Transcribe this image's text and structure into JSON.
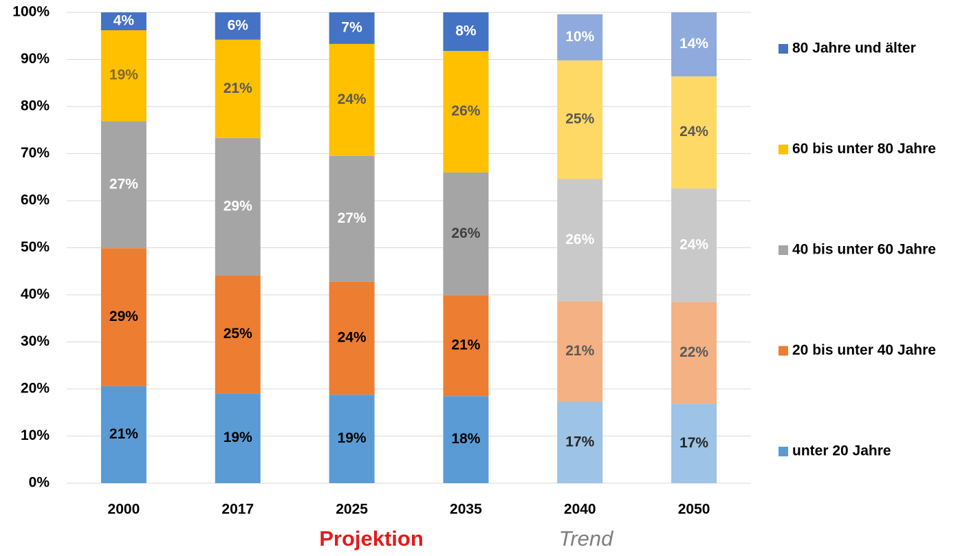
{
  "chart_data": {
    "type": "stacked_bar",
    "categories": [
      "2000",
      "2017",
      "2025",
      "2035",
      "2040",
      "2050"
    ],
    "series": [
      {
        "name": "unter 20 Jahre",
        "color": "#5b9bd5",
        "point_colors": [
          "#5b9bd5",
          "#5b9bd5",
          "#5b9bd5",
          "#5b9bd5",
          "#9dc3e6",
          "#9dc3e6"
        ],
        "label_colors": [
          "#000000",
          "#000000",
          "#000000",
          "#000000",
          "#262626",
          "#262626"
        ],
        "values": [
          20.6,
          19.1,
          18.8,
          18.5,
          17.3,
          16.8
        ],
        "value_labels": [
          "21%",
          "19%",
          "19%",
          "18%",
          "17%",
          "17%"
        ]
      },
      {
        "name": "20 bis unter 40 Jahre",
        "color": "#ed7d31",
        "point_colors": [
          "#ed7d31",
          "#ed7d31",
          "#ed7d31",
          "#ed7d31",
          "#f4b183",
          "#f4b183"
        ],
        "label_colors": [
          "#000000",
          "#000000",
          "#000000",
          "#000000",
          "#595959",
          "#595959"
        ],
        "values": [
          29.3,
          25.0,
          24.0,
          21.4,
          21.3,
          21.7
        ],
        "value_labels": [
          "29%",
          "25%",
          "24%",
          "21%",
          "21%",
          "22%"
        ]
      },
      {
        "name": "40 bis unter 60 Jahre",
        "color": "#a5a5a5",
        "point_colors": [
          "#a5a5a5",
          "#a5a5a5",
          "#a5a5a5",
          "#a5a5a5",
          "#c9c9c9",
          "#c9c9c9"
        ],
        "label_colors": [
          "#ffffff",
          "#ffffff",
          "#ffffff",
          "#404040",
          "#ffffff",
          "#ffffff"
        ],
        "values": [
          27.0,
          29.2,
          26.7,
          26.1,
          26.0,
          24.1
        ],
        "value_labels": [
          "27%",
          "29%",
          "27%",
          "26%",
          "26%",
          "24%"
        ]
      },
      {
        "name": "60 bis unter 80 Jahre",
        "color": "#ffc000",
        "point_colors": [
          "#ffc000",
          "#ffc000",
          "#ffc000",
          "#ffc000",
          "#ffd966",
          "#ffd966"
        ],
        "label_colors": [
          "#7f6a2a",
          "#595959",
          "#595959",
          "#595959",
          "#595959",
          "#595959"
        ],
        "values": [
          19.3,
          20.9,
          23.8,
          25.8,
          25.2,
          23.8
        ],
        "value_labels": [
          "19%",
          "21%",
          "24%",
          "26%",
          "25%",
          "24%"
        ]
      },
      {
        "name": "80 Jahre und älter",
        "color": "#4472c4",
        "point_colors": [
          "#4472c4",
          "#4472c4",
          "#4472c4",
          "#4472c4",
          "#8faadc",
          "#8faadc"
        ],
        "label_colors": [
          "#ffffff",
          "#ffffff",
          "#ffffff",
          "#ffffff",
          "#ffffff",
          "#ffffff"
        ],
        "values": [
          3.8,
          5.8,
          6.7,
          8.2,
          9.8,
          13.6
        ],
        "value_labels": [
          "4%",
          "6%",
          "7%",
          "8%",
          "10%",
          "14%"
        ]
      }
    ],
    "ylim": [
      0,
      100
    ],
    "yticks": [
      {
        "value": 0,
        "label": "0%"
      },
      {
        "value": 10,
        "label": "10%"
      },
      {
        "value": 20,
        "label": "20%"
      },
      {
        "value": 30,
        "label": "30%"
      },
      {
        "value": 40,
        "label": "40%"
      },
      {
        "value": 50,
        "label": "50%"
      },
      {
        "value": 60,
        "label": "60%"
      },
      {
        "value": 70,
        "label": "70%"
      },
      {
        "value": 80,
        "label": "80%"
      },
      {
        "value": 90,
        "label": "90%"
      },
      {
        "value": 100,
        "label": "100%"
      }
    ],
    "grid": true,
    "legend": "right",
    "annotations": [
      "Projektion",
      "Trend"
    ]
  }
}
